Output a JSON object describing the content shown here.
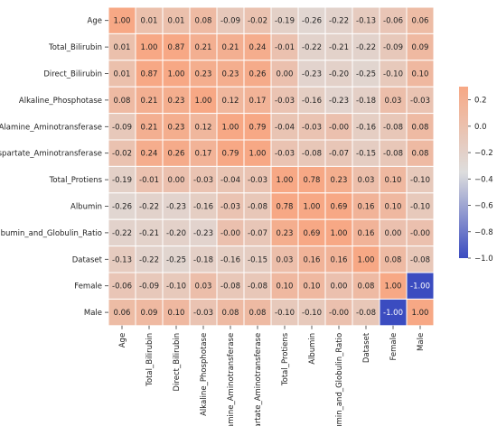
{
  "chart_data": {
    "type": "heatmap",
    "title": "",
    "xlabel": "",
    "ylabel": "",
    "x_labels": [
      "Age",
      "Total_Bilirubin",
      "Direct_Bilirubin",
      "Alkaline_Phosphotase",
      "Alamine_Aminotransferase",
      "Aspartate_Aminotransferase",
      "Total_Protiens",
      "Albumin",
      "Albumin_and_Globulin_Ratio",
      "Dataset",
      "Female",
      "Male"
    ],
    "y_labels": [
      "Age",
      "Total_Bilirubin",
      "Direct_Bilirubin",
      "Alkaline_Phosphotase",
      "Alamine_Aminotransferase",
      "Aspartate_Aminotransferase",
      "Total_Protiens",
      "Albumin",
      "Albumin_and_Globulin_Ratio",
      "Dataset",
      "Female",
      "Male"
    ],
    "cell_text": [
      [
        "1.00",
        "0.01",
        "0.01",
        "0.08",
        "-0.09",
        "-0.02",
        "-0.19",
        "-0.26",
        "-0.22",
        "-0.13",
        "-0.06",
        "0.06"
      ],
      [
        "0.01",
        "1.00",
        "0.87",
        "0.21",
        "0.21",
        "0.24",
        "-0.01",
        "-0.22",
        "-0.21",
        "-0.22",
        "-0.09",
        "0.09"
      ],
      [
        "0.01",
        "0.87",
        "1.00",
        "0.23",
        "0.23",
        "0.26",
        "0.00",
        "-0.23",
        "-0.20",
        "-0.25",
        "-0.10",
        "0.10"
      ],
      [
        "0.08",
        "0.21",
        "0.23",
        "1.00",
        "0.12",
        "0.17",
        "-0.03",
        "-0.16",
        "-0.23",
        "-0.18",
        "0.03",
        "-0.03"
      ],
      [
        "-0.09",
        "0.21",
        "0.23",
        "0.12",
        "1.00",
        "0.79",
        "-0.04",
        "-0.03",
        "-0.00",
        "-0.16",
        "-0.08",
        "0.08"
      ],
      [
        "-0.02",
        "0.24",
        "0.26",
        "0.17",
        "0.79",
        "1.00",
        "-0.03",
        "-0.08",
        "-0.07",
        "-0.15",
        "-0.08",
        "0.08"
      ],
      [
        "-0.19",
        "-0.01",
        "0.00",
        "-0.03",
        "-0.04",
        "-0.03",
        "1.00",
        "0.78",
        "0.23",
        "0.03",
        "0.10",
        "-0.10"
      ],
      [
        "-0.26",
        "-0.22",
        "-0.23",
        "-0.16",
        "-0.03",
        "-0.08",
        "0.78",
        "1.00",
        "0.69",
        "0.16",
        "0.10",
        "-0.10"
      ],
      [
        "-0.22",
        "-0.21",
        "-0.20",
        "-0.23",
        "-0.00",
        "-0.07",
        "0.23",
        "0.69",
        "1.00",
        "0.16",
        "0.00",
        "-0.00"
      ],
      [
        "-0.13",
        "-0.22",
        "-0.25",
        "-0.18",
        "-0.16",
        "-0.15",
        "0.03",
        "0.16",
        "0.16",
        "1.00",
        "0.08",
        "-0.08"
      ],
      [
        "-0.06",
        "-0.09",
        "-0.10",
        "0.03",
        "-0.08",
        "-0.08",
        "0.10",
        "0.10",
        "0.00",
        "0.08",
        "1.00",
        "-1.00"
      ],
      [
        "0.06",
        "0.09",
        "0.10",
        "-0.03",
        "0.08",
        "0.08",
        "-0.10",
        "-0.10",
        "-0.00",
        "-0.08",
        "-1.00",
        "1.00"
      ]
    ],
    "color_range": [
      -1.0,
      0.3
    ],
    "colormap": "coolwarm",
    "colorbar": {
      "ticks": [
        0.2,
        0.0,
        -0.2,
        -0.4,
        -0.6,
        -0.8,
        -1.0
      ],
      "tick_labels": [
        "0.2",
        "0.0",
        "−0.2",
        "−0.4",
        "−0.6",
        "−0.8",
        "−1.0"
      ]
    },
    "grid": true,
    "legend": "colorbar-right"
  }
}
